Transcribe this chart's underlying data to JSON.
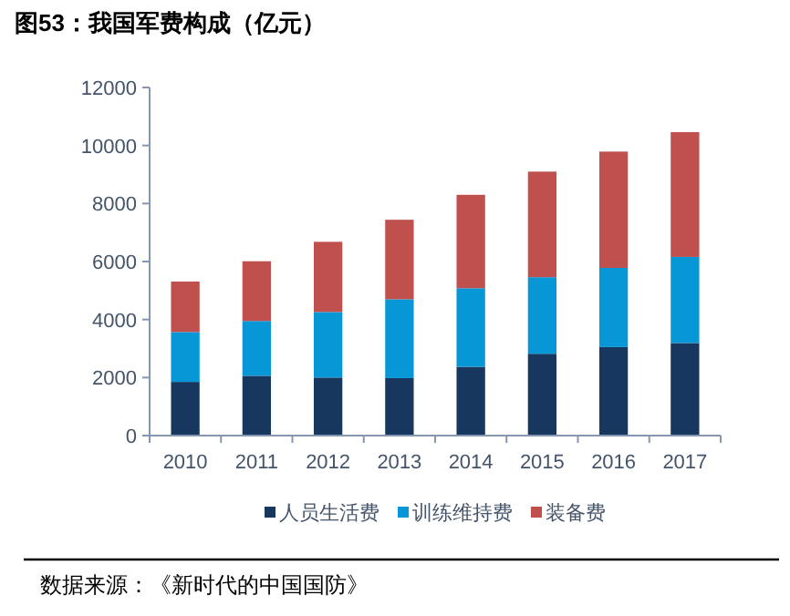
{
  "chart_data": {
    "type": "bar",
    "title": "图53：我国军费构成（亿元）",
    "stacked": true,
    "categories": [
      "2010",
      "2011",
      "2012",
      "2013",
      "2014",
      "2015",
      "2016",
      "2017"
    ],
    "series": [
      {
        "name": "人员生活费",
        "color": "#17375e",
        "values": [
          1850,
          2060,
          2000,
          1980,
          2370,
          2820,
          3050,
          3190
        ]
      },
      {
        "name": "训练维持费",
        "color": "#0796d6",
        "values": [
          1720,
          1890,
          2260,
          2720,
          2710,
          2640,
          2730,
          2970
        ]
      },
      {
        "name": "装备费",
        "color": "#c0504d",
        "values": [
          1740,
          2060,
          2420,
          2740,
          3220,
          3640,
          4010,
          4300
        ]
      }
    ],
    "ylim": [
      0,
      12000
    ],
    "yticks": [
      0,
      2000,
      4000,
      6000,
      8000,
      10000,
      12000
    ],
    "grid": false,
    "legend": "bottom",
    "annotations": [
      "数据来源：《新时代的中国国防》"
    ]
  }
}
